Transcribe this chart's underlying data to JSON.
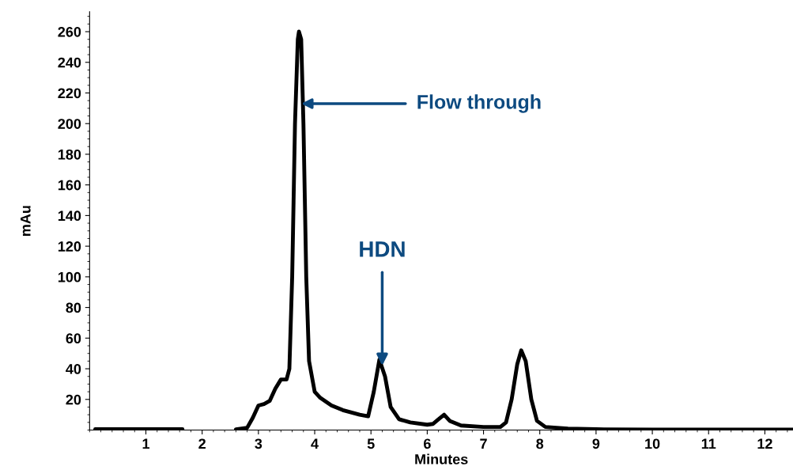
{
  "chart_data": {
    "type": "line",
    "xlabel": "Minutes",
    "ylabel": "mAu",
    "x": [
      0.1,
      0.5,
      1.0,
      1.5,
      1.65,
      2.0,
      2.6,
      2.8,
      2.9,
      3.0,
      3.1,
      3.2,
      3.3,
      3.4,
      3.5,
      3.55,
      3.6,
      3.65,
      3.7,
      3.72,
      3.76,
      3.8,
      3.85,
      3.9,
      4.0,
      4.1,
      4.3,
      4.5,
      4.8,
      4.95,
      5.05,
      5.15,
      5.25,
      5.35,
      5.5,
      5.7,
      6.0,
      6.1,
      6.2,
      6.3,
      6.4,
      6.6,
      7.0,
      7.3,
      7.4,
      7.5,
      7.6,
      7.67,
      7.75,
      7.85,
      7.95,
      8.1,
      8.5,
      9.0,
      10.0,
      12.5
    ],
    "series": [
      {
        "color": "#000000",
        "values": [
          0.5,
          0.5,
          0.5,
          0.5,
          0.5,
          null,
          0.5,
          1.5,
          8,
          16,
          17,
          19,
          27,
          33,
          33,
          40,
          100,
          200,
          255,
          260,
          255,
          200,
          100,
          45,
          25,
          21,
          16,
          13,
          10,
          9,
          25,
          46,
          35,
          15,
          7,
          5,
          3.5,
          4,
          7,
          10,
          6,
          3,
          2,
          2,
          5,
          20,
          43,
          52,
          45,
          20,
          6,
          2,
          1,
          0.5,
          0.3,
          0.3
        ]
      }
    ],
    "xlim": [
      0,
      12.5
    ],
    "ylim": [
      0,
      273
    ],
    "xticks": [
      1,
      2,
      3,
      4,
      5,
      6,
      7,
      8,
      9,
      10,
      11,
      12
    ],
    "yticks": [
      20,
      40,
      60,
      80,
      100,
      120,
      140,
      160,
      180,
      200,
      220,
      240,
      260
    ],
    "annotations": [
      {
        "text": "Flow through",
        "x": 3.76,
        "y": 213
      },
      {
        "text": "HDN",
        "x": 5.2,
        "y": 42
      }
    ],
    "grid": false,
    "legend": false,
    "marker": "none",
    "line_style": "solid"
  }
}
